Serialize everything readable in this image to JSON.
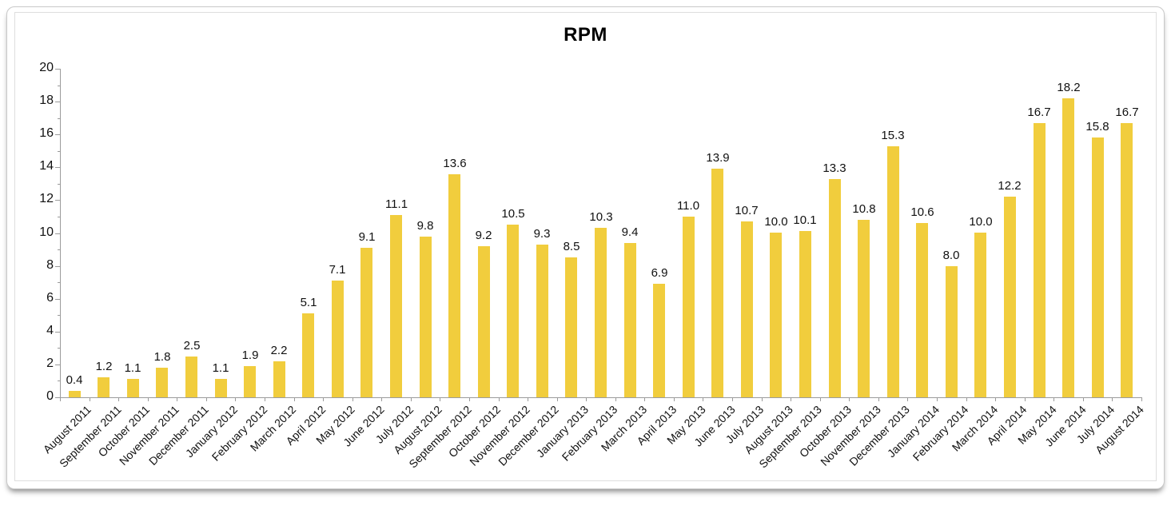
{
  "chart_data": {
    "type": "bar",
    "title": "RPM",
    "categories": [
      "August 2011",
      "September 2011",
      "October 2011",
      "November 2011",
      "December 2011",
      "January 2012",
      "February 2012",
      "March 2012",
      "April 2012",
      "May 2012",
      "June 2012",
      "July 2012",
      "August 2012",
      "September 2012",
      "October 2012",
      "November 2012",
      "December 2012",
      "January 2013",
      "February 2013",
      "March 2013",
      "April 2013",
      "May 2013",
      "June 2013",
      "July 2013",
      "August 2013",
      "September 2013",
      "October 2013",
      "November 2013",
      "December 2013",
      "January 2014",
      "February 2014",
      "March 2014",
      "April 2014",
      "May 2014",
      "June 2014",
      "July 2014",
      "August 2014"
    ],
    "values": [
      0.4,
      1.2,
      1.1,
      1.8,
      2.5,
      1.1,
      1.9,
      2.2,
      5.1,
      7.1,
      9.1,
      11.1,
      9.8,
      13.6,
      9.2,
      10.5,
      9.3,
      8.5,
      10.3,
      9.4,
      6.9,
      11.0,
      13.9,
      10.7,
      10.0,
      10.1,
      13.3,
      10.8,
      15.3,
      10.6,
      8.0,
      10.0,
      12.2,
      16.7,
      18.2,
      15.8,
      16.7
    ],
    "xlabel": "",
    "ylabel": "",
    "ylim": [
      0,
      20
    ],
    "ytick_step": 2,
    "ytick_labels": [
      "0",
      "2",
      "4",
      "6",
      "8",
      "10",
      "12",
      "14",
      "16",
      "18",
      "20"
    ],
    "value_label_decimals": 1,
    "grid": false,
    "legend_position": "none",
    "bar_color": "#F1CD3D",
    "axis_color": "#9b9b9b",
    "text_color": "#111111",
    "value_labels_shown": true
  }
}
